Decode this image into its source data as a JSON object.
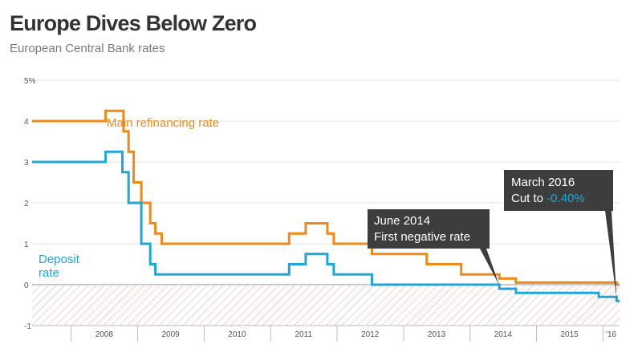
{
  "header": {
    "title": "Europe Dives Below Zero",
    "subtitle": "European Central Bank rates"
  },
  "colors": {
    "main": "#f08a16",
    "deposit": "#1da7d9",
    "annotation_bg": "#3d3d3d",
    "hatch": "#f2a3a3"
  },
  "chart_data": {
    "type": "line",
    "title": "Europe Dives Below Zero",
    "subtitle": "European Central Bank rates",
    "xlabel": "",
    "ylabel": "",
    "ylim": [
      -1,
      5
    ],
    "xlim": [
      "2007-06-01",
      "2016-04-01"
    ],
    "y_ticks": [
      "5%",
      "4",
      "3",
      "2",
      "1",
      "0",
      "-1"
    ],
    "x_ticks": [
      "2008",
      "2009",
      "2010",
      "2011",
      "2012",
      "2013",
      "2014",
      "2015",
      "'16"
    ],
    "grid": true,
    "series": [
      {
        "name": "Main refinancing rate",
        "color": "#f08a16",
        "step": true,
        "points": [
          [
            "2007-06-01",
            4.0
          ],
          [
            "2008-07-09",
            4.25
          ],
          [
            "2008-10-15",
            3.75
          ],
          [
            "2008-11-12",
            3.25
          ],
          [
            "2008-12-10",
            2.5
          ],
          [
            "2009-01-21",
            2.0
          ],
          [
            "2009-03-11",
            1.5
          ],
          [
            "2009-04-08",
            1.25
          ],
          [
            "2009-05-13",
            1.0
          ],
          [
            "2011-04-13",
            1.25
          ],
          [
            "2011-07-13",
            1.5
          ],
          [
            "2011-11-09",
            1.25
          ],
          [
            "2011-12-14",
            1.0
          ],
          [
            "2012-07-11",
            0.75
          ],
          [
            "2013-05-08",
            0.5
          ],
          [
            "2013-11-13",
            0.25
          ],
          [
            "2014-06-11",
            0.15
          ],
          [
            "2014-09-10",
            0.05
          ],
          [
            "2016-03-16",
            0.0
          ],
          [
            "2016-04-01",
            0.0
          ]
        ]
      },
      {
        "name": "Deposit rate",
        "color": "#1da7d9",
        "step": true,
        "points": [
          [
            "2007-06-01",
            3.0
          ],
          [
            "2008-07-09",
            3.25
          ],
          [
            "2008-10-09",
            2.75
          ],
          [
            "2008-11-12",
            2.0
          ],
          [
            "2009-01-21",
            1.0
          ],
          [
            "2009-03-11",
            0.5
          ],
          [
            "2009-04-08",
            0.25
          ],
          [
            "2011-04-13",
            0.5
          ],
          [
            "2011-07-13",
            0.75
          ],
          [
            "2011-11-09",
            0.5
          ],
          [
            "2011-12-14",
            0.25
          ],
          [
            "2012-07-11",
            0.0
          ],
          [
            "2014-06-11",
            -0.1
          ],
          [
            "2014-09-10",
            -0.2
          ],
          [
            "2015-12-09",
            -0.3
          ],
          [
            "2016-03-16",
            -0.4
          ],
          [
            "2016-04-01",
            -0.4
          ]
        ]
      }
    ],
    "series_labels": [
      {
        "text": "Main refinancing rate",
        "series": 0
      },
      {
        "lines": [
          "Deposit",
          "rate"
        ],
        "series": 1
      }
    ],
    "annotations": [
      {
        "date": "2014-06-11",
        "lines": [
          "June 2014",
          "First negative rate"
        ]
      },
      {
        "date": "2016-03-16",
        "line1": "March 2016",
        "line2_prefix": "Cut to ",
        "line2_value": "-0.40%"
      }
    ],
    "shaded_region": "below zero (hatched)"
  }
}
